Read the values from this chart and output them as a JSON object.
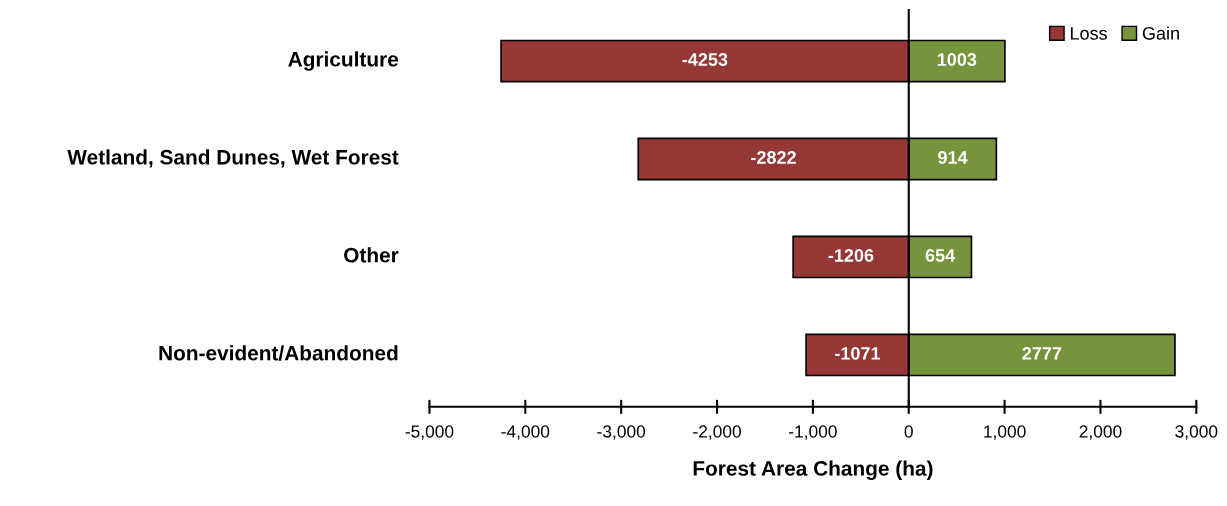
{
  "chart_data": {
    "type": "bar",
    "orientation": "horizontal",
    "stacked": true,
    "categories": [
      "Agriculture",
      "Wetland, Sand Dunes, Wet Forest",
      "Other",
      "Non-evident/Abandoned"
    ],
    "series": [
      {
        "name": "Loss",
        "color": "#953735",
        "values": [
          -4253,
          -2822,
          -1206,
          -1071
        ]
      },
      {
        "name": "Gain",
        "color": "#77933c",
        "values": [
          1003,
          914,
          654,
          2777
        ]
      }
    ],
    "xlabel": "Forest Area Change (ha)",
    "xlim": [
      -5000,
      3000
    ],
    "xticks": [
      {
        "value": -5000,
        "label": "-5,000"
      },
      {
        "value": -4000,
        "label": "-4,000"
      },
      {
        "value": -3000,
        "label": "-3,000"
      },
      {
        "value": -2000,
        "label": "-2,000"
      },
      {
        "value": -1000,
        "label": "-1,000"
      },
      0,
      {
        "value": 1000,
        "label": "1,000"
      },
      {
        "value": 2000,
        "label": "2,000"
      },
      {
        "value": 3000,
        "label": "3,000"
      }
    ],
    "ref_lines": [
      {
        "axis": "x",
        "value": 0,
        "color": "#000000"
      }
    ],
    "data_labels": true,
    "legend": "top right"
  }
}
